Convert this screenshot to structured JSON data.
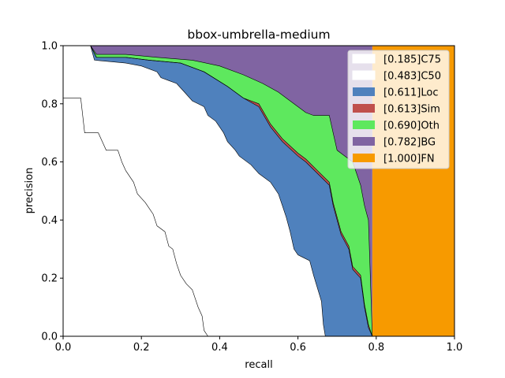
{
  "chart_data": {
    "type": "area",
    "title": "bbox-umbrella-medium",
    "xlabel": "recall",
    "ylabel": "precision",
    "xlim": [
      0.0,
      1.0
    ],
    "ylim": [
      0.0,
      1.0
    ],
    "x_ticks": [
      "0.0",
      "0.2",
      "0.4",
      "0.6",
      "0.8",
      "1.0"
    ],
    "y_ticks": [
      "0.0",
      "0.2",
      "0.4",
      "0.6",
      "0.8",
      "1.0"
    ],
    "grid": false,
    "legend_position": "top-right",
    "series": [
      {
        "name": "[0.185]C75",
        "color": "#ffffff",
        "points": [
          [
            0.0,
            0.82
          ],
          [
            0.045,
            0.82
          ],
          [
            0.055,
            0.7
          ],
          [
            0.09,
            0.7
          ],
          [
            0.1,
            0.67
          ],
          [
            0.11,
            0.64
          ],
          [
            0.14,
            0.64
          ],
          [
            0.15,
            0.6
          ],
          [
            0.16,
            0.57
          ],
          [
            0.18,
            0.53
          ],
          [
            0.19,
            0.49
          ],
          [
            0.21,
            0.46
          ],
          [
            0.22,
            0.44
          ],
          [
            0.23,
            0.42
          ],
          [
            0.24,
            0.38
          ],
          [
            0.26,
            0.36
          ],
          [
            0.27,
            0.31
          ],
          [
            0.28,
            0.3
          ],
          [
            0.29,
            0.25
          ],
          [
            0.3,
            0.21
          ],
          [
            0.315,
            0.18
          ],
          [
            0.33,
            0.16
          ],
          [
            0.345,
            0.1
          ],
          [
            0.355,
            0.07
          ],
          [
            0.36,
            0.02
          ],
          [
            0.37,
            0.0
          ]
        ]
      },
      {
        "name": "[0.483]C50",
        "color": "#ffffff",
        "points": [
          [
            0.0,
            1.0
          ],
          [
            0.07,
            1.0
          ],
          [
            0.08,
            0.95
          ],
          [
            0.16,
            0.94
          ],
          [
            0.2,
            0.93
          ],
          [
            0.24,
            0.91
          ],
          [
            0.25,
            0.89
          ],
          [
            0.27,
            0.88
          ],
          [
            0.29,
            0.87
          ],
          [
            0.31,
            0.84
          ],
          [
            0.33,
            0.81
          ],
          [
            0.36,
            0.79
          ],
          [
            0.37,
            0.76
          ],
          [
            0.39,
            0.74
          ],
          [
            0.41,
            0.7
          ],
          [
            0.42,
            0.67
          ],
          [
            0.44,
            0.64
          ],
          [
            0.45,
            0.62
          ],
          [
            0.48,
            0.59
          ],
          [
            0.5,
            0.56
          ],
          [
            0.53,
            0.53
          ],
          [
            0.55,
            0.49
          ],
          [
            0.56,
            0.45
          ],
          [
            0.57,
            0.41
          ],
          [
            0.58,
            0.36
          ],
          [
            0.59,
            0.3
          ],
          [
            0.6,
            0.28
          ],
          [
            0.63,
            0.26
          ],
          [
            0.64,
            0.21
          ],
          [
            0.66,
            0.12
          ],
          [
            0.665,
            0.04
          ],
          [
            0.67,
            0.0
          ]
        ]
      },
      {
        "name": "[0.611]Loc",
        "color": "#4f81bd",
        "points": [
          [
            0.07,
            1.0
          ],
          [
            0.085,
            0.96
          ],
          [
            0.16,
            0.96
          ],
          [
            0.22,
            0.95
          ],
          [
            0.3,
            0.94
          ],
          [
            0.36,
            0.91
          ],
          [
            0.42,
            0.86
          ],
          [
            0.46,
            0.82
          ],
          [
            0.5,
            0.79
          ],
          [
            0.53,
            0.72
          ],
          [
            0.56,
            0.67
          ],
          [
            0.6,
            0.62
          ],
          [
            0.62,
            0.6
          ],
          [
            0.65,
            0.56
          ],
          [
            0.68,
            0.52
          ],
          [
            0.69,
            0.45
          ],
          [
            0.7,
            0.4
          ],
          [
            0.71,
            0.35
          ],
          [
            0.73,
            0.3
          ],
          [
            0.74,
            0.23
          ],
          [
            0.76,
            0.2
          ],
          [
            0.77,
            0.1
          ],
          [
            0.78,
            0.03
          ],
          [
            0.79,
            0.0
          ]
        ]
      },
      {
        "name": "[0.613]Sim",
        "color": "#c0504d",
        "points": [
          [
            0.07,
            1.0
          ],
          [
            0.085,
            0.96
          ],
          [
            0.16,
            0.96
          ],
          [
            0.22,
            0.95
          ],
          [
            0.3,
            0.94
          ],
          [
            0.36,
            0.91
          ],
          [
            0.42,
            0.86
          ],
          [
            0.46,
            0.82
          ],
          [
            0.5,
            0.8
          ],
          [
            0.53,
            0.73
          ],
          [
            0.56,
            0.68
          ],
          [
            0.6,
            0.63
          ],
          [
            0.62,
            0.61
          ],
          [
            0.65,
            0.57
          ],
          [
            0.68,
            0.53
          ],
          [
            0.69,
            0.46
          ],
          [
            0.7,
            0.41
          ],
          [
            0.71,
            0.36
          ],
          [
            0.73,
            0.31
          ],
          [
            0.74,
            0.24
          ],
          [
            0.76,
            0.21
          ],
          [
            0.77,
            0.11
          ],
          [
            0.78,
            0.04
          ],
          [
            0.79,
            0.0
          ]
        ]
      },
      {
        "name": "[0.690]Oth",
        "color": "#5ee85e",
        "points": [
          [
            0.07,
            1.0
          ],
          [
            0.085,
            0.97
          ],
          [
            0.16,
            0.97
          ],
          [
            0.24,
            0.96
          ],
          [
            0.33,
            0.95
          ],
          [
            0.4,
            0.93
          ],
          [
            0.46,
            0.9
          ],
          [
            0.51,
            0.87
          ],
          [
            0.55,
            0.84
          ],
          [
            0.59,
            0.8
          ],
          [
            0.62,
            0.77
          ],
          [
            0.64,
            0.76
          ],
          [
            0.68,
            0.76
          ],
          [
            0.69,
            0.7
          ],
          [
            0.7,
            0.64
          ],
          [
            0.72,
            0.62
          ],
          [
            0.74,
            0.6
          ],
          [
            0.76,
            0.52
          ],
          [
            0.77,
            0.45
          ],
          [
            0.78,
            0.4
          ],
          [
            0.785,
            0.2
          ],
          [
            0.79,
            0.0
          ]
        ]
      },
      {
        "name": "[0.782]BG",
        "color": "#8064a2",
        "points": [
          [
            0.07,
            1.0
          ],
          [
            0.79,
            1.0
          ],
          [
            0.79,
            0.0
          ]
        ]
      },
      {
        "name": "[1.000]FN",
        "color": "#f79a00",
        "points": [
          [
            0.79,
            1.0
          ],
          [
            1.0,
            1.0
          ],
          [
            1.0,
            0.0
          ],
          [
            0.79,
            0.0
          ]
        ]
      }
    ]
  }
}
